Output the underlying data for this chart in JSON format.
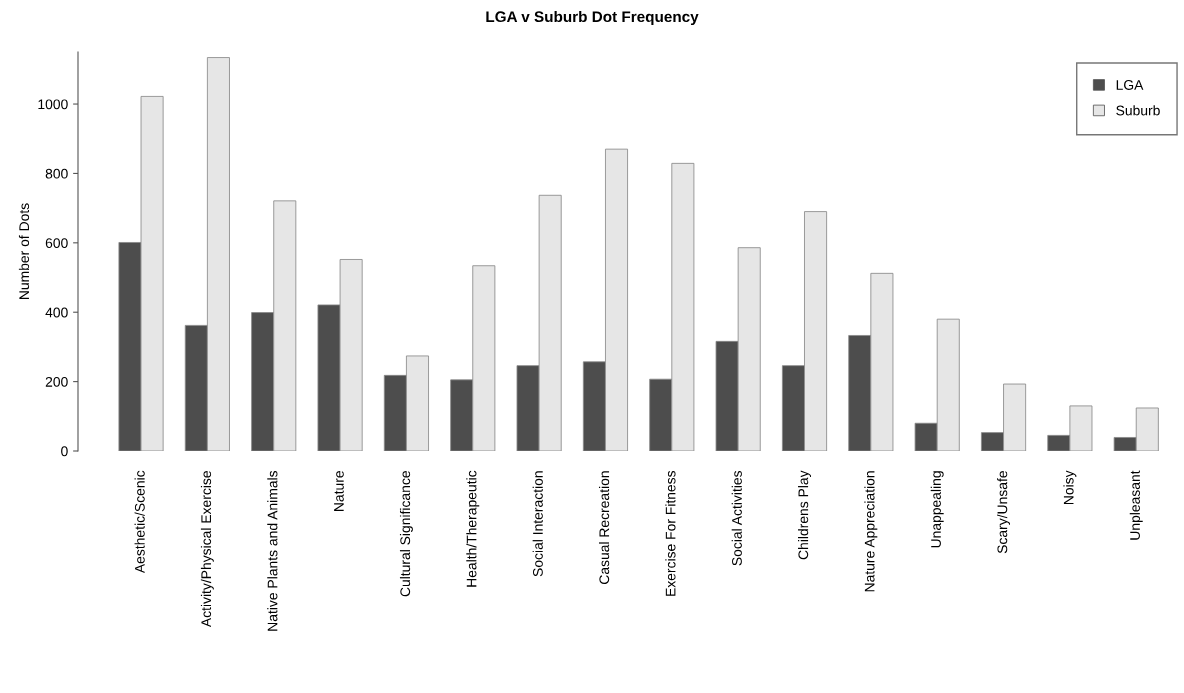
{
  "chart_data": {
    "type": "bar",
    "title": "LGA v Suburb Dot Frequency",
    "ylabel": "Number of Dots",
    "categories": [
      "Aesthetic/Scenic",
      "Activity/Physical Exercise",
      "Native Plants and Animals",
      "Nature",
      "Cultural Significance",
      "Health/Therapeutic",
      "Social Interaction",
      "Casual Recreation",
      "Exercise For Fitness",
      "Social Activities",
      "Childrens Play",
      "Nature Appreciation",
      "Unappealing",
      "Scary/Unsafe",
      "Noisy",
      "Unpleasant"
    ],
    "series": [
      {
        "name": "LGA",
        "color": "#4d4d4d",
        "values": [
          601,
          362,
          399,
          421,
          218,
          205,
          246,
          257,
          207,
          316,
          246,
          333,
          80,
          53,
          45,
          39
        ]
      },
      {
        "name": "Suburb",
        "color": "#e6e6e6",
        "values": [
          1022,
          1134,
          721,
          552,
          274,
          534,
          737,
          870,
          829,
          586,
          690,
          512,
          380,
          193,
          130,
          124
        ]
      }
    ],
    "ylim": [
      0,
      1150
    ],
    "yticks": [
      0,
      200,
      400,
      600,
      800,
      1000
    ],
    "grid": false,
    "legend": "top right"
  }
}
